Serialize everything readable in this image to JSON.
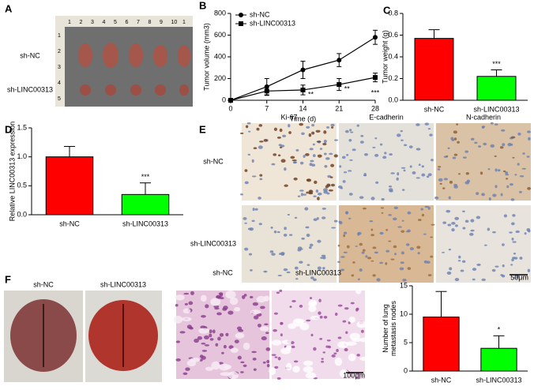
{
  "panel_labels": [
    "A",
    "B",
    "C",
    "D",
    "E",
    "F"
  ],
  "panel_a": {
    "rows": [
      "sh-NC",
      "sh-LINC00313"
    ],
    "ruler_top": [
      "1",
      "2",
      "3",
      "4",
      "5",
      "6",
      "7",
      "8",
      "9",
      "10",
      "1"
    ],
    "ruler_side": [
      "1",
      "2",
      "3",
      "4",
      "5"
    ]
  },
  "panel_e": {
    "columns": [
      "Ki-67",
      "E-cadherin",
      "N-cadherin"
    ],
    "rows": [
      "sh-NC",
      "sh-LINC00313"
    ],
    "scale_bar": "50μm"
  },
  "panel_f": {
    "photo_labels": [
      "sh-NC",
      "sh-LINC00313"
    ],
    "histology_labels": [
      "sh-NC",
      "sh-LINC00313"
    ],
    "scale_bar": "100μm"
  },
  "chart_data": [
    {
      "type": "line",
      "x": [
        0,
        7,
        14,
        21,
        28
      ],
      "xlim": [
        0,
        28
      ],
      "xticks": [
        0,
        7,
        14,
        21,
        28
      ],
      "ylim": [
        0,
        800
      ],
      "yticks": [
        0,
        200,
        400,
        600,
        800
      ],
      "xlabel": "Time (d)",
      "ylabel": "Tumor volume (mm3)",
      "legend": "upper left",
      "series": [
        {
          "name": "sh-NC",
          "color": "#000000",
          "marker": "circle",
          "values": [
            0,
            125,
            280,
            370,
            580
          ],
          "errors": [
            0,
            75,
            80,
            60,
            65
          ]
        },
        {
          "name": "sh-LINC00313",
          "color": "#000000",
          "marker": "square",
          "values": [
            0,
            85,
            95,
            145,
            210
          ],
          "errors": [
            0,
            40,
            45,
            55,
            40
          ]
        }
      ],
      "annotations": [
        {
          "text": "**",
          "x": 14
        },
        {
          "text": "**",
          "x": 21
        },
        {
          "text": "***",
          "x": 28
        }
      ]
    },
    {
      "type": "bar",
      "categories": [
        "sh-NC",
        "sh-LINC00313"
      ],
      "values": [
        0.57,
        0.22
      ],
      "errors": [
        0.08,
        0.06
      ],
      "colors": [
        "#ff0000",
        "#00ff00"
      ],
      "ylim": [
        0,
        0.8
      ],
      "yticks": [
        {
          "value": 0,
          "label": "0.0"
        },
        0.2,
        0.4,
        0.6,
        0.8
      ],
      "ylabel": "Tumor weight (g)",
      "annotations": [
        {
          "text": "***",
          "category": 1
        }
      ]
    },
    {
      "type": "bar",
      "categories": [
        "sh-NC",
        "sh-LINC00313"
      ],
      "values": [
        1.0,
        0.35
      ],
      "errors": [
        0.18,
        0.2
      ],
      "colors": [
        "#ff0000",
        "#00ff00"
      ],
      "ylim": [
        0,
        1.5
      ],
      "yticks": [
        {
          "value": 0,
          "label": "0.0"
        },
        0.5,
        {
          "value": 1,
          "label": "1.0"
        },
        1.5
      ],
      "ylabel": "Relative LINC00313 expression",
      "annotations": [
        {
          "text": "***",
          "category": 1
        }
      ]
    },
    {
      "type": "bar",
      "categories": [
        "sh-NC",
        "sh-LINC00313"
      ],
      "values": [
        9.5,
        4.0
      ],
      "errors": [
        4.5,
        2.2
      ],
      "colors": [
        "#ff0000",
        "#00ff00"
      ],
      "ylim": [
        0,
        15
      ],
      "yticks": [
        0,
        5,
        10,
        15
      ],
      "ylabel": "Number of lung metastasis nodes",
      "annotations": [
        {
          "text": "*",
          "category": 1
        }
      ]
    }
  ]
}
